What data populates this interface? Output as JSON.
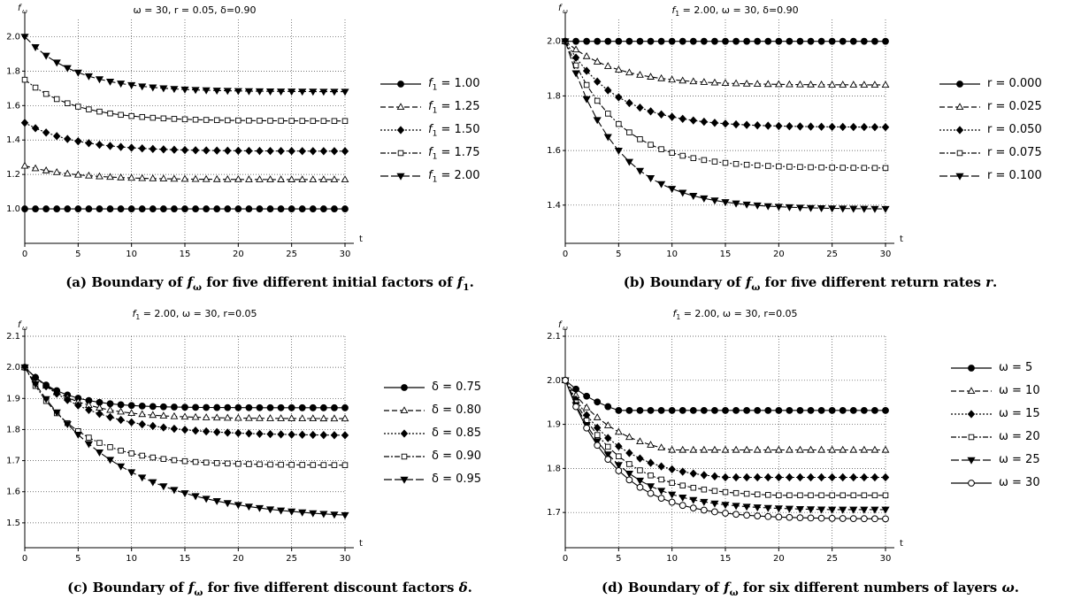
{
  "chart_data": [
    {
      "id": "a",
      "type": "line",
      "title": "ω = 30, r = 0.05, δ=0.90",
      "ylabel": "f",
      "ylabel_sub": "ω",
      "xlabel": "t",
      "caption": {
        "pre": "(a) Boundary of ",
        "sym1": "f",
        "sym1_sub": "ω",
        "mid": " for five different initial factors of ",
        "sym2": "f",
        "sym2_sub": "1",
        "post": "."
      },
      "xlim": [
        0,
        30
      ],
      "ylim": [
        0.8,
        2.1
      ],
      "xticks": [
        0,
        5,
        10,
        15,
        20,
        25,
        30
      ],
      "yticks": [
        1.0,
        1.2,
        1.4,
        1.6,
        1.8,
        2.0
      ],
      "ytick_labels": [
        "1.0",
        "1.2",
        "1.4",
        "1.6",
        "1.8",
        "2.0"
      ],
      "legend_position": "right",
      "x": [
        0,
        1,
        2,
        3,
        4,
        5,
        6,
        7,
        8,
        9,
        10,
        11,
        12,
        13,
        14,
        15,
        16,
        17,
        18,
        19,
        20,
        21,
        22,
        23,
        24,
        25,
        26,
        27,
        28,
        29,
        30
      ],
      "series": [
        {
          "name_pre": "f",
          "name_sub": "1",
          "name_post": " = 1.00",
          "marker": "circle",
          "fill": "black",
          "dash": "",
          "start": 1.0,
          "end": 1.0,
          "rate": 0.81
        },
        {
          "name_pre": "f",
          "name_sub": "1",
          "name_post": " = 1.25",
          "marker": "triangle-up",
          "fill": "white",
          "dash": "6,3",
          "start": 1.25,
          "end": 1.17,
          "rate": 0.81
        },
        {
          "name_pre": "f",
          "name_sub": "1",
          "name_post": " = 1.50",
          "marker": "diamond",
          "fill": "black",
          "dash": "2,2",
          "start": 1.5,
          "end": 1.335,
          "rate": 0.81
        },
        {
          "name_pre": "f",
          "name_sub": "1",
          "name_post": " = 1.75",
          "marker": "square",
          "fill": "white",
          "dash": "6,2,2,2",
          "start": 1.75,
          "end": 1.51,
          "rate": 0.81
        },
        {
          "name_pre": "f",
          "name_sub": "1",
          "name_post": " = 2.00",
          "marker": "triangle-down",
          "fill": "black",
          "dash": "9,3",
          "start": 2.0,
          "end": 1.68,
          "rate": 0.81
        }
      ]
    },
    {
      "id": "b",
      "type": "line",
      "title_pre": "f",
      "title_sub": "1",
      "title": " = 2.00, ω = 30, δ=0.90",
      "ylabel": "f",
      "ylabel_sub": "ω",
      "xlabel": "t",
      "caption": {
        "pre": "(b) Boundary of ",
        "sym1": "f",
        "sym1_sub": "ω",
        "mid": " for five different return rates ",
        "sym2": "r",
        "sym2_sub": "",
        "post": "."
      },
      "xlim": [
        0,
        30
      ],
      "ylim": [
        1.26,
        2.08
      ],
      "xticks": [
        0,
        5,
        10,
        15,
        20,
        25,
        30
      ],
      "yticks": [
        1.4,
        1.6,
        1.8,
        2.0
      ],
      "ytick_labels": [
        "1.4",
        "1.6",
        "1.8",
        "2.0"
      ],
      "legend_position": "right",
      "x": [
        0,
        1,
        2,
        3,
        4,
        5,
        6,
        7,
        8,
        9,
        10,
        11,
        12,
        13,
        14,
        15,
        16,
        17,
        18,
        19,
        20,
        21,
        22,
        23,
        24,
        25,
        26,
        27,
        28,
        29,
        30
      ],
      "series": [
        {
          "name": "r = 0.000",
          "marker": "circle",
          "fill": "black",
          "dash": "",
          "start": 2.0,
          "end": 2.0,
          "rate": 0.81
        },
        {
          "name": "r = 0.025",
          "marker": "triangle-up",
          "fill": "white",
          "dash": "6,3",
          "start": 2.0,
          "end": 1.84,
          "rate": 0.81
        },
        {
          "name": "r = 0.050",
          "marker": "diamond",
          "fill": "black",
          "dash": "2,2",
          "start": 2.0,
          "end": 1.685,
          "rate": 0.81
        },
        {
          "name": "r = 0.075",
          "marker": "square",
          "fill": "white",
          "dash": "6,2,2,2",
          "start": 2.0,
          "end": 1.535,
          "rate": 0.81
        },
        {
          "name": "r = 0.100",
          "marker": "triangle-down",
          "fill": "black",
          "dash": "9,3",
          "start": 2.0,
          "end": 1.385,
          "rate": 0.81
        }
      ]
    },
    {
      "id": "c",
      "type": "line",
      "title_pre": "f",
      "title_sub": "1",
      "title": " = 2.00, ω = 30, r=0.05",
      "ylabel": "f",
      "ylabel_sub": "ω",
      "xlabel": "t",
      "caption": {
        "pre": "(c) Boundary of ",
        "sym1": "f",
        "sym1_sub": "ω",
        "mid": " for five different discount factors ",
        "sym2": "δ",
        "sym2_sub": "",
        "post": "."
      },
      "xlim": [
        0,
        30
      ],
      "ylim": [
        1.42,
        2.1
      ],
      "xticks": [
        0,
        5,
        10,
        15,
        20,
        25,
        30
      ],
      "yticks": [
        1.5,
        1.6,
        1.7,
        1.8,
        1.9,
        2.0,
        2.1
      ],
      "ytick_labels": [
        "1.5",
        "1.6",
        "1.7",
        "1.8",
        "1.9",
        "2.0",
        "2.1"
      ],
      "legend_position": "right",
      "x": [
        0,
        1,
        2,
        3,
        4,
        5,
        6,
        7,
        8,
        9,
        10,
        11,
        12,
        13,
        14,
        15,
        16,
        17,
        18,
        19,
        20,
        21,
        22,
        23,
        24,
        25,
        26,
        27,
        28,
        29,
        30
      ],
      "series": [
        {
          "name": "δ = 0.75",
          "marker": "circle",
          "fill": "black",
          "dash": "",
          "start": 2.0,
          "end": 1.87,
          "rate": 0.75
        },
        {
          "name": "δ = 0.80",
          "marker": "triangle-up",
          "fill": "white",
          "dash": "6,3",
          "start": 2.0,
          "end": 1.835,
          "rate": 0.8
        },
        {
          "name": "δ = 0.85",
          "marker": "diamond",
          "fill": "black",
          "dash": "2,2",
          "start": 2.0,
          "end": 1.78,
          "rate": 0.85
        },
        {
          "name": "δ = 0.90",
          "marker": "square",
          "fill": "white",
          "dash": "6,2,2,2",
          "start": 2.0,
          "end": 1.685,
          "rate": 0.81
        },
        {
          "name": "δ = 0.95",
          "marker": "triangle-down",
          "fill": "black",
          "dash": "9,3",
          "start": 2.0,
          "end": 1.51,
          "rate": 0.89
        }
      ]
    },
    {
      "id": "d",
      "type": "line",
      "title_pre": "f",
      "title_sub": "1",
      "title": " = 2.00, ω = 30, r=0.05",
      "ylabel": "f",
      "ylabel_sub": "ω",
      "xlabel": "t",
      "caption": {
        "pre": "(d) Boundary of ",
        "sym1": "f",
        "sym1_sub": "ω",
        "mid": " for six different numbers of layers ",
        "sym2": "ω",
        "sym2_sub": "",
        "post": "."
      },
      "xlim": [
        0,
        30
      ],
      "ylim": [
        1.62,
        2.1
      ],
      "xticks": [
        0,
        5,
        10,
        15,
        20,
        25,
        30
      ],
      "yticks": [
        1.7,
        1.8,
        1.9,
        2.0,
        2.1
      ],
      "ytick_labels": [
        "1.7",
        "1.8",
        "1.9",
        "2.0",
        "2.1"
      ],
      "legend_position": "right",
      "x": [
        0,
        1,
        2,
        3,
        4,
        5,
        6,
        7,
        8,
        9,
        10,
        11,
        12,
        13,
        14,
        15,
        16,
        17,
        18,
        19,
        20,
        21,
        22,
        23,
        24,
        25,
        26,
        27,
        28,
        29,
        30
      ],
      "series": [
        {
          "name": "ω = 5",
          "marker": "circle",
          "fill": "black",
          "dash": "",
          "start": 2.0,
          "end": 1.895,
          "rate": 0.81,
          "cutoff": 5
        },
        {
          "name": "ω = 10",
          "marker": "triangle-up",
          "fill": "white",
          "dash": "6,3",
          "start": 2.0,
          "end": 1.82,
          "rate": 0.81,
          "cutoff": 10
        },
        {
          "name": "ω = 15",
          "marker": "diamond",
          "fill": "black",
          "dash": "2,2",
          "start": 2.0,
          "end": 1.77,
          "rate": 0.81,
          "cutoff": 15
        },
        {
          "name": "ω = 20",
          "marker": "square",
          "fill": "white",
          "dash": "6,2,2,2",
          "start": 2.0,
          "end": 1.735,
          "rate": 0.81,
          "cutoff": 20
        },
        {
          "name": "ω = 25",
          "marker": "triangle-down",
          "fill": "black",
          "dash": "9,3",
          "start": 2.0,
          "end": 1.705,
          "rate": 0.81,
          "cutoff": 25
        },
        {
          "name": "ω = 30",
          "marker": "circle",
          "fill": "white",
          "dash": "",
          "start": 2.0,
          "end": 1.685,
          "rate": 0.81,
          "cutoff": 30
        }
      ]
    }
  ]
}
